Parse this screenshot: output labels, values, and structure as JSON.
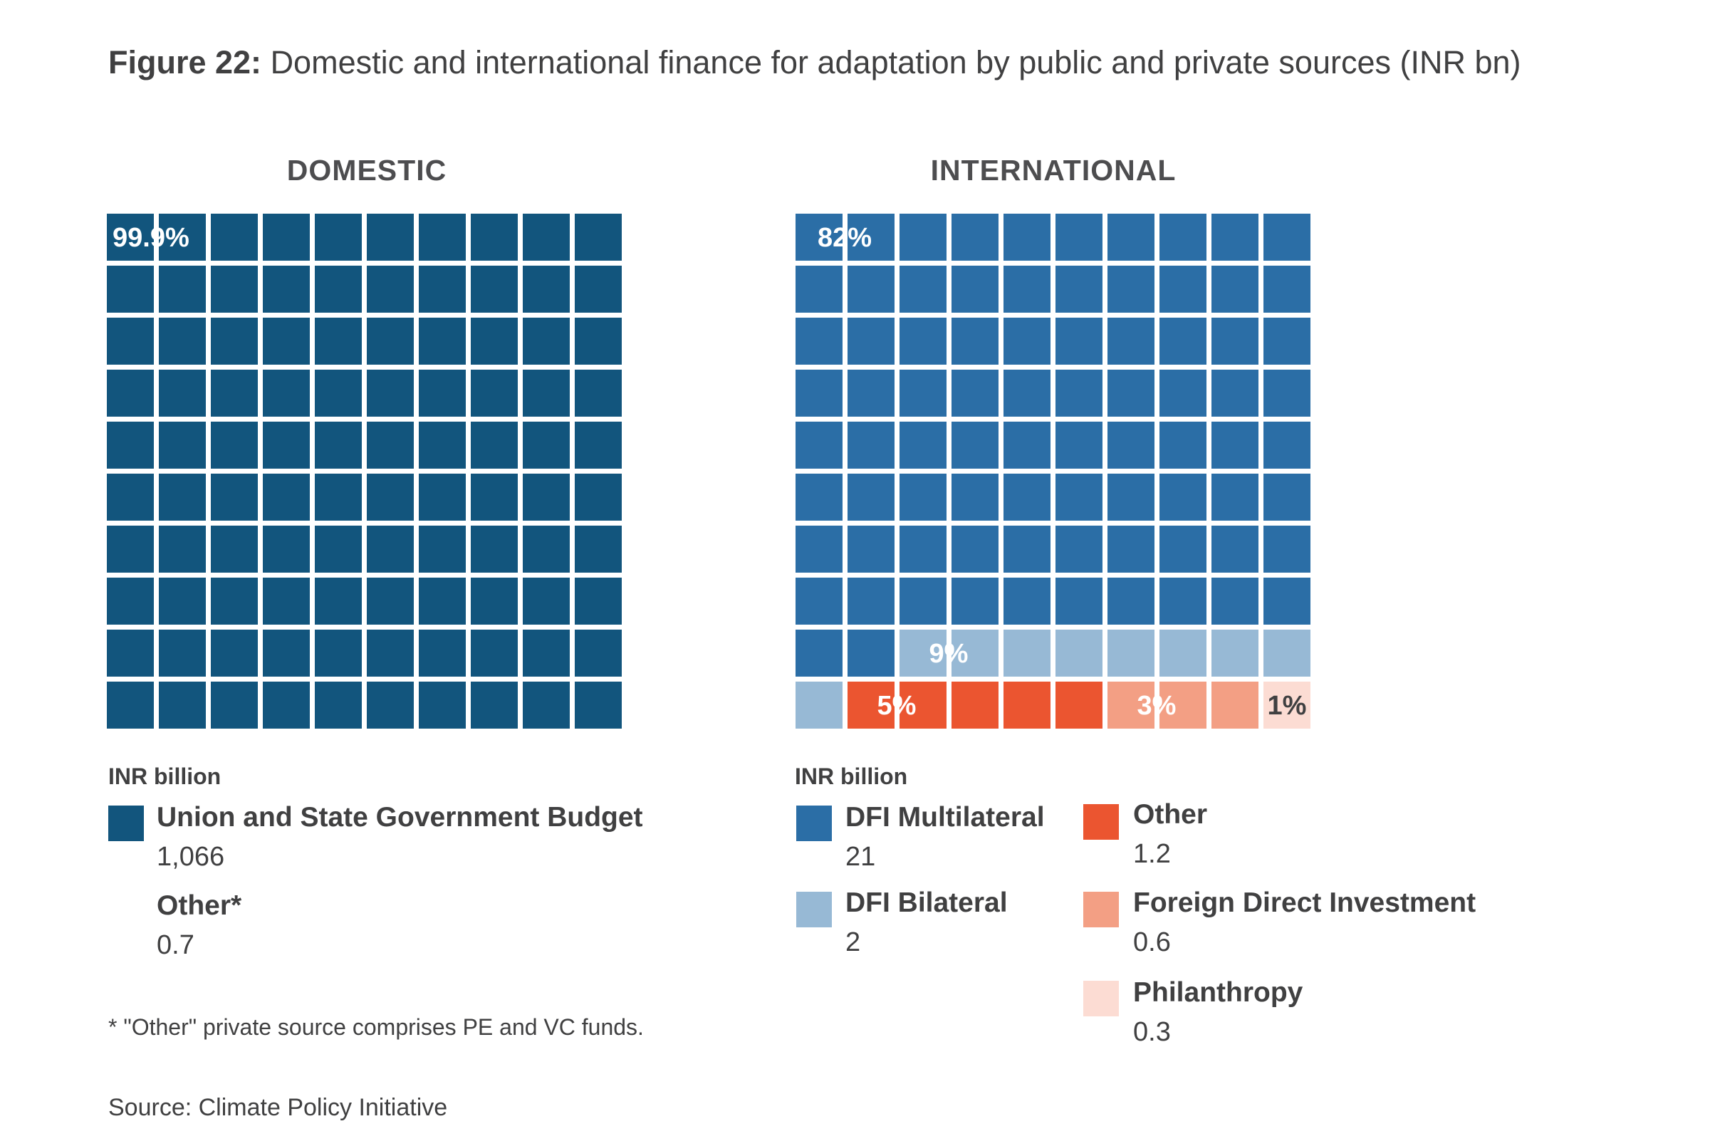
{
  "title": {
    "bold": "Figure 22:",
    "text": "Domestic and international finance for adaptation by public and private sources (INR bn)"
  },
  "chart_data": [
    {
      "type": "waffle",
      "title": "DOMESTIC",
      "unit_label": "INR billion",
      "grid": {
        "rows": 10,
        "cols": 10
      },
      "series": [
        {
          "name": "Union and State Government Budget",
          "value": "1,066",
          "cells": 100,
          "pct_label": "99.9%",
          "color": "#12557d"
        },
        {
          "name": "Other*",
          "value": "0.7",
          "cells": 0,
          "pct_label": "",
          "color": "#12557d"
        }
      ]
    },
    {
      "type": "waffle",
      "title": "INTERNATIONAL",
      "unit_label": "INR billion",
      "grid": {
        "rows": 10,
        "cols": 10
      },
      "series": [
        {
          "name": "DFI Multilateral",
          "value": "21",
          "cells": 82,
          "pct_label": "82%",
          "color": "#2b6ea6"
        },
        {
          "name": "DFI Bilateral",
          "value": "2",
          "cells": 9,
          "pct_label": "9%",
          "color": "#97b9d5"
        },
        {
          "name": "Other",
          "value": "1.2",
          "cells": 5,
          "pct_label": "5%",
          "color": "#eb5530"
        },
        {
          "name": "Foreign Direct Investment",
          "value": "0.6",
          "cells": 3,
          "pct_label": "3%",
          "color": "#f39f84"
        },
        {
          "name": "Philanthropy",
          "value": "0.3",
          "cells": 1,
          "pct_label": "1%",
          "color": "#fcdcd3"
        }
      ]
    }
  ],
  "footnote": "* \"Other\" private source comprises PE and VC funds.",
  "source": "Source: Climate Policy Initiative"
}
